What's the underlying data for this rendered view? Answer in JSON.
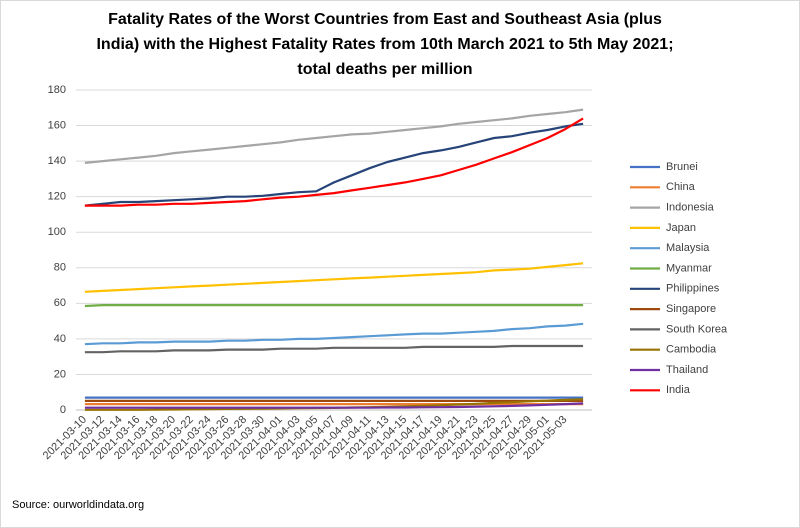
{
  "chart_data": {
    "type": "line",
    "title": [
      "Fatality Rates of the Worst Countries from East and Southeast Asia (plus",
      "India) with the Highest Fatality Rates from 10th March 2021 to 5th May 2021;",
      "total deaths per million"
    ],
    "source": "Source: ourworldindata.org",
    "categories": [
      "2021-03-10",
      "2021-03-12",
      "2021-03-14",
      "2021-03-16",
      "2021-03-18",
      "2021-03-20",
      "2021-03-22",
      "2021-03-24",
      "2021-03-26",
      "2021-03-28",
      "2021-03-30",
      "2021-04-01",
      "2021-04-03",
      "2021-04-05",
      "2021-04-07",
      "2021-04-09",
      "2021-04-11",
      "2021-04-13",
      "2021-04-15",
      "2021-04-17",
      "2021-04-19",
      "2021-04-21",
      "2021-04-23",
      "2021-04-25",
      "2021-04-27",
      "2021-04-29",
      "2021-05-01",
      "2021-05-03",
      null
    ],
    "ylim": [
      0,
      180
    ],
    "yticks": [
      0,
      20,
      40,
      60,
      80,
      100,
      120,
      140,
      160,
      180
    ],
    "grid": true,
    "legend": "right",
    "series": [
      {
        "name": "Brunei",
        "color": "#4472c4",
        "values": [
          7,
          7,
          7,
          7,
          7,
          7,
          7,
          7,
          7,
          7,
          7,
          7,
          7,
          7,
          7,
          7,
          7,
          7,
          7,
          7,
          7,
          7,
          7,
          7,
          7,
          7,
          7,
          7,
          7
        ]
      },
      {
        "name": "China",
        "color": "#ed7d31",
        "values": [
          3.3,
          3.3,
          3.3,
          3.3,
          3.3,
          3.3,
          3.3,
          3.3,
          3.3,
          3.3,
          3.3,
          3.3,
          3.3,
          3.3,
          3.3,
          3.3,
          3.3,
          3.3,
          3.3,
          3.3,
          3.3,
          3.3,
          3.3,
          3.3,
          3.3,
          3.3,
          3.3,
          3.3,
          3.3
        ]
      },
      {
        "name": "Indonesia",
        "color": "#a5a5a5",
        "values": [
          139,
          140,
          141,
          142,
          143,
          144.5,
          145.5,
          146.5,
          147.5,
          148.5,
          149.5,
          150.5,
          152,
          153,
          154,
          155,
          155.5,
          156.5,
          157.5,
          158.5,
          159.5,
          161,
          162,
          163,
          164,
          165.5,
          166.5,
          167.5,
          169
        ]
      },
      {
        "name": "Japan",
        "color": "#ffc000",
        "values": [
          66.5,
          67,
          67.5,
          68,
          68.5,
          69,
          69.5,
          70,
          70.5,
          71,
          71.5,
          72,
          72.5,
          73,
          73.5,
          74,
          74.5,
          75,
          75.5,
          76,
          76.5,
          77,
          77.5,
          78.5,
          79,
          79.5,
          80.5,
          81.5,
          82.5
        ]
      },
      {
        "name": "Malaysia",
        "color": "#5b9bd5",
        "values": [
          37,
          37.5,
          37.5,
          38,
          38,
          38.5,
          38.5,
          38.5,
          39,
          39,
          39.5,
          39.5,
          40,
          40,
          40.5,
          41,
          41.5,
          42,
          42.5,
          43,
          43,
          43.5,
          44,
          44.5,
          45.5,
          46,
          47,
          47.5,
          48.5
        ]
      },
      {
        "name": "Myanmar",
        "color": "#70ad47",
        "values": [
          58.5,
          59,
          59,
          59,
          59,
          59,
          59,
          59,
          59,
          59,
          59,
          59,
          59,
          59,
          59,
          59,
          59,
          59,
          59,
          59,
          59,
          59,
          59,
          59,
          59,
          59,
          59,
          59,
          59
        ]
      },
      {
        "name": "Philippines",
        "color": "#264478",
        "values": [
          115,
          116,
          117,
          117,
          117.5,
          118,
          118.5,
          119,
          120,
          120,
          120.5,
          121.5,
          122.5,
          123,
          128,
          132,
          136,
          139.5,
          142,
          144.5,
          146,
          148,
          150.5,
          153,
          154,
          156,
          157.5,
          159.5,
          161
        ]
      },
      {
        "name": "Singapore",
        "color": "#9e480e",
        "values": [
          5.1,
          5.1,
          5.1,
          5.1,
          5.1,
          5.1,
          5.1,
          5.1,
          5.1,
          5.1,
          5.1,
          5.1,
          5.1,
          5.1,
          5.1,
          5.1,
          5.1,
          5.1,
          5.1,
          5.1,
          5.1,
          5.1,
          5.1,
          5.1,
          5.1,
          5.1,
          5.1,
          5.1,
          5.1
        ]
      },
      {
        "name": "South Korea",
        "color": "#636363",
        "values": [
          32.5,
          32.5,
          33,
          33,
          33,
          33.5,
          33.5,
          33.5,
          34,
          34,
          34,
          34.5,
          34.5,
          34.5,
          35,
          35,
          35,
          35,
          35,
          35.5,
          35.5,
          35.5,
          35.5,
          35.5,
          36,
          36,
          36,
          36,
          36
        ]
      },
      {
        "name": "Cambodia",
        "color": "#997300",
        "values": [
          0.1,
          0.1,
          0.1,
          0.1,
          0.2,
          0.3,
          0.4,
          0.5,
          0.6,
          0.7,
          0.8,
          0.9,
          1,
          1.1,
          1.2,
          1.4,
          1.6,
          1.8,
          2,
          2.3,
          2.7,
          3.1,
          3.5,
          4,
          4.4,
          4.9,
          5.3,
          5.7,
          6
        ]
      },
      {
        "name": "Thailand",
        "color": "#7030a0",
        "values": [
          1.3,
          1.3,
          1.3,
          1.3,
          1.3,
          1.3,
          1.3,
          1.3,
          1.3,
          1.3,
          1.3,
          1.3,
          1.3,
          1.3,
          1.3,
          1.3,
          1.3,
          1.4,
          1.4,
          1.5,
          1.6,
          1.7,
          1.9,
          2.1,
          2.3,
          2.6,
          2.9,
          3.3,
          3.7
        ]
      },
      {
        "name": "India",
        "color": "#ff0000",
        "values": [
          115,
          115,
          115,
          115.5,
          115.5,
          116,
          116,
          116.5,
          117,
          117.5,
          118.5,
          119.5,
          120,
          121,
          122,
          123.5,
          125,
          126.5,
          128,
          130,
          132,
          135,
          138,
          141.5,
          145,
          149,
          153,
          158,
          164
        ]
      }
    ]
  }
}
